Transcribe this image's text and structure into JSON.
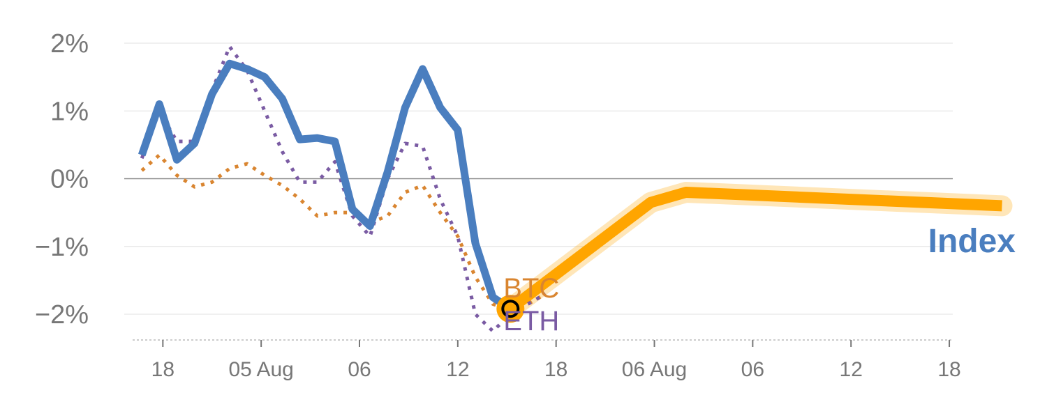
{
  "chart_data": {
    "type": "line",
    "title": "",
    "xlabel": "",
    "ylabel": "",
    "ylim": [
      -2.35,
      2.2
    ],
    "yticks": [
      {
        "value": 2,
        "label": "2%"
      },
      {
        "value": 1,
        "label": "1%"
      },
      {
        "value": 0,
        "label": "0%"
      },
      {
        "value": -1,
        "label": "−1%"
      },
      {
        "value": -2,
        "label": "−2%"
      }
    ],
    "x_index_range": [
      0,
      52
    ],
    "xticks": [
      {
        "index": 2.2,
        "label": "18"
      },
      {
        "index": 7.8,
        "label": "05 Aug"
      },
      {
        "index": 13.4,
        "label": "06"
      },
      {
        "index": 19.0,
        "label": "12"
      },
      {
        "index": 24.6,
        "label": "18"
      },
      {
        "index": 30.2,
        "label": "06 Aug"
      },
      {
        "index": 35.8,
        "label": "06"
      },
      {
        "index": 41.4,
        "label": "12"
      },
      {
        "index": 47.0,
        "label": "18"
      }
    ],
    "grid": true,
    "series": [
      {
        "name": "BTC",
        "style": "dotted",
        "color": "#d98530",
        "x": [
          1,
          2,
          3,
          4,
          5,
          6,
          7,
          8,
          9,
          10,
          11,
          12,
          13,
          14,
          15,
          16,
          17,
          18,
          19,
          20,
          21,
          22,
          23,
          24
        ],
        "values": [
          0.12,
          0.35,
          0.05,
          -0.12,
          -0.05,
          0.15,
          0.22,
          0.05,
          -0.1,
          -0.3,
          -0.55,
          -0.5,
          -0.5,
          -0.65,
          -0.55,
          -0.2,
          -0.1,
          -0.5,
          -0.85,
          -1.45,
          -1.85,
          -1.95,
          -1.85,
          -1.7
        ]
      },
      {
        "name": "ETH",
        "style": "dotted",
        "color": "#7a5ba3",
        "x": [
          1,
          2,
          3,
          4,
          5,
          6,
          7,
          8,
          9,
          10,
          11,
          12,
          13,
          14,
          15,
          16,
          17,
          18,
          19,
          20,
          21,
          22,
          23,
          24
        ],
        "values": [
          0.3,
          1.0,
          0.55,
          0.55,
          1.3,
          1.95,
          1.6,
          1.0,
          0.4,
          -0.05,
          -0.05,
          0.25,
          -0.55,
          -0.85,
          0.0,
          0.52,
          0.48,
          -0.3,
          -0.85,
          -2.0,
          -2.25,
          -2.0,
          -1.85,
          -1.7
        ]
      },
      {
        "name": "Index",
        "style": "solid",
        "color": "#4a7ebf",
        "x": [
          1,
          2,
          3,
          4,
          5,
          6,
          7,
          8,
          9,
          10,
          11,
          12,
          13,
          14,
          15,
          16,
          17,
          18,
          19,
          20,
          21,
          22
        ],
        "values": [
          0.35,
          1.1,
          0.28,
          0.52,
          1.25,
          1.7,
          1.62,
          1.5,
          1.18,
          0.58,
          0.6,
          0.55,
          -0.45,
          -0.7,
          0.1,
          1.05,
          1.62,
          1.05,
          0.72,
          -0.95,
          -1.75,
          -1.92
        ]
      }
    ],
    "forecast": {
      "color": "#ffa500",
      "x": [
        22,
        30,
        32,
        50
      ],
      "values": [
        -1.92,
        -0.35,
        -0.2,
        -0.4
      ]
    },
    "marker": {
      "x": 22,
      "value": -1.92
    },
    "labels": {
      "btc": "BTC",
      "eth": "ETH",
      "index": "Index"
    }
  }
}
